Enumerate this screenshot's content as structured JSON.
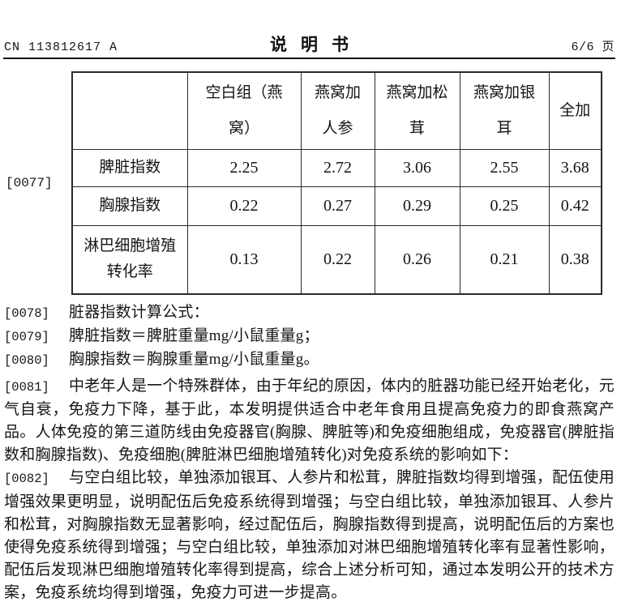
{
  "header": {
    "doc_number": "CN 113812617 A",
    "title": "说明书",
    "page_indicator": "6/6 页"
  },
  "margin_label": "[0077]",
  "table": {
    "columns": [
      "",
      "空白组（燕\n窝）",
      "燕窝加\n人参",
      "燕窝加松\n茸",
      "燕窝加银\n耳",
      "全加"
    ],
    "rows": [
      {
        "label": "脾脏指数",
        "values": [
          "2.25",
          "2.72",
          "3.06",
          "2.55",
          "3.68"
        ]
      },
      {
        "label": "胸腺指数",
        "values": [
          "0.22",
          "0.27",
          "0.29",
          "0.25",
          "0.42"
        ]
      },
      {
        "label": "淋巴细胞增殖\n转化率",
        "values": [
          "0.13",
          "0.22",
          "0.26",
          "0.21",
          "0.38"
        ]
      }
    ]
  },
  "paragraphs": [
    {
      "label": "[0078]",
      "text": "脏器指数计算公式："
    },
    {
      "label": "[0079]",
      "text": "脾脏指数＝脾脏重量mg/小鼠重量g；"
    },
    {
      "label": "[0080]",
      "text": "胸腺指数＝胸腺重量mg/小鼠重量g。"
    },
    {
      "label": "[0081]",
      "text": "中老年人是一个特殊群体，由于年纪的原因，体内的脏器功能已经开始老化，元气自衰，免疫力下降，基于此，本发明提供适合中老年食用且提高免疫力的即食燕窝产品。人体免疫的第三道防线由免疫器官(胸腺、脾脏等)和免疫细胞组成，免疫器官(脾脏指数和胸腺指数)、免疫细胞(脾脏淋巴细胞增殖转化)对免疫系统的影响如下："
    },
    {
      "label": "[0082]",
      "text": "与空白组比较，单独添加银耳、人参片和松茸，脾脏指数均得到增强，配伍使用增强效果更明显，说明配伍后免疫系统得到增强；与空白组比较，单独添加银耳、人参片和松茸，对胸腺指数无显著影响，经过配伍后，胸腺指数得到提高，说明配伍后的方案也使得免疫系统得到增强；与空白组比较，单独添加对淋巴细胞增殖转化率有显著性影响，配伍后发现淋巴细胞增殖转化率得到提高，综合上述分析可知，通过本发明公开的技术方案，免疫系统均得到增强，免疫力可进一步提高。"
    }
  ]
}
